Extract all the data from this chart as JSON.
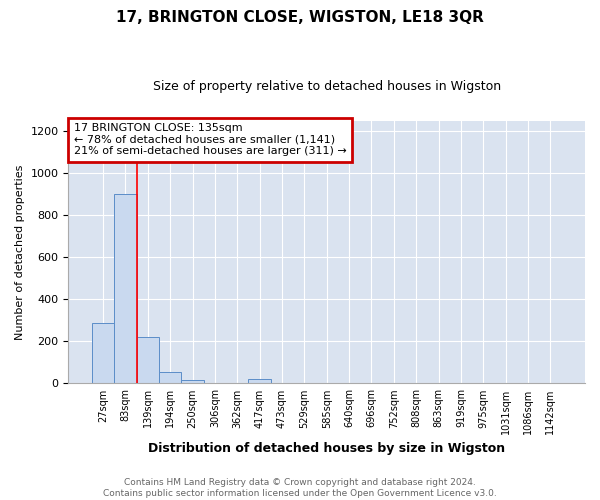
{
  "title": "17, BRINGTON CLOSE, WIGSTON, LE18 3QR",
  "subtitle": "Size of property relative to detached houses in Wigston",
  "xlabel": "Distribution of detached houses by size in Wigston",
  "ylabel": "Number of detached properties",
  "categories": [
    "27sqm",
    "83sqm",
    "139sqm",
    "194sqm",
    "250sqm",
    "306sqm",
    "362sqm",
    "417sqm",
    "473sqm",
    "529sqm",
    "585sqm",
    "640sqm",
    "696sqm",
    "752sqm",
    "808sqm",
    "863sqm",
    "919sqm",
    "975sqm",
    "1031sqm",
    "1086sqm",
    "1142sqm"
  ],
  "values": [
    285,
    900,
    220,
    55,
    18,
    0,
    0,
    20,
    0,
    0,
    0,
    0,
    0,
    0,
    0,
    0,
    0,
    0,
    0,
    0,
    0
  ],
  "bar_color": "#c9d9ef",
  "bar_edge_color": "#5b8dc8",
  "red_line_x": 2.5,
  "ylim": [
    0,
    1250
  ],
  "yticks": [
    0,
    200,
    400,
    600,
    800,
    1000,
    1200
  ],
  "annotation_text": "17 BRINGTON CLOSE: 135sqm\n← 78% of detached houses are smaller (1,141)\n21% of semi-detached houses are larger (311) →",
  "annotation_box_color": "#ffffff",
  "annotation_box_edge": "#cc0000",
  "footer": "Contains HM Land Registry data © Crown copyright and database right 2024.\nContains public sector information licensed under the Open Government Licence v3.0.",
  "title_fontsize": 11,
  "subtitle_fontsize": 9,
  "xlabel_fontsize": 9,
  "ylabel_fontsize": 8,
  "tick_fontsize": 7,
  "annotation_fontsize": 8,
  "footer_fontsize": 6.5,
  "background_color": "#ffffff",
  "grid_color": "#dae3f0"
}
